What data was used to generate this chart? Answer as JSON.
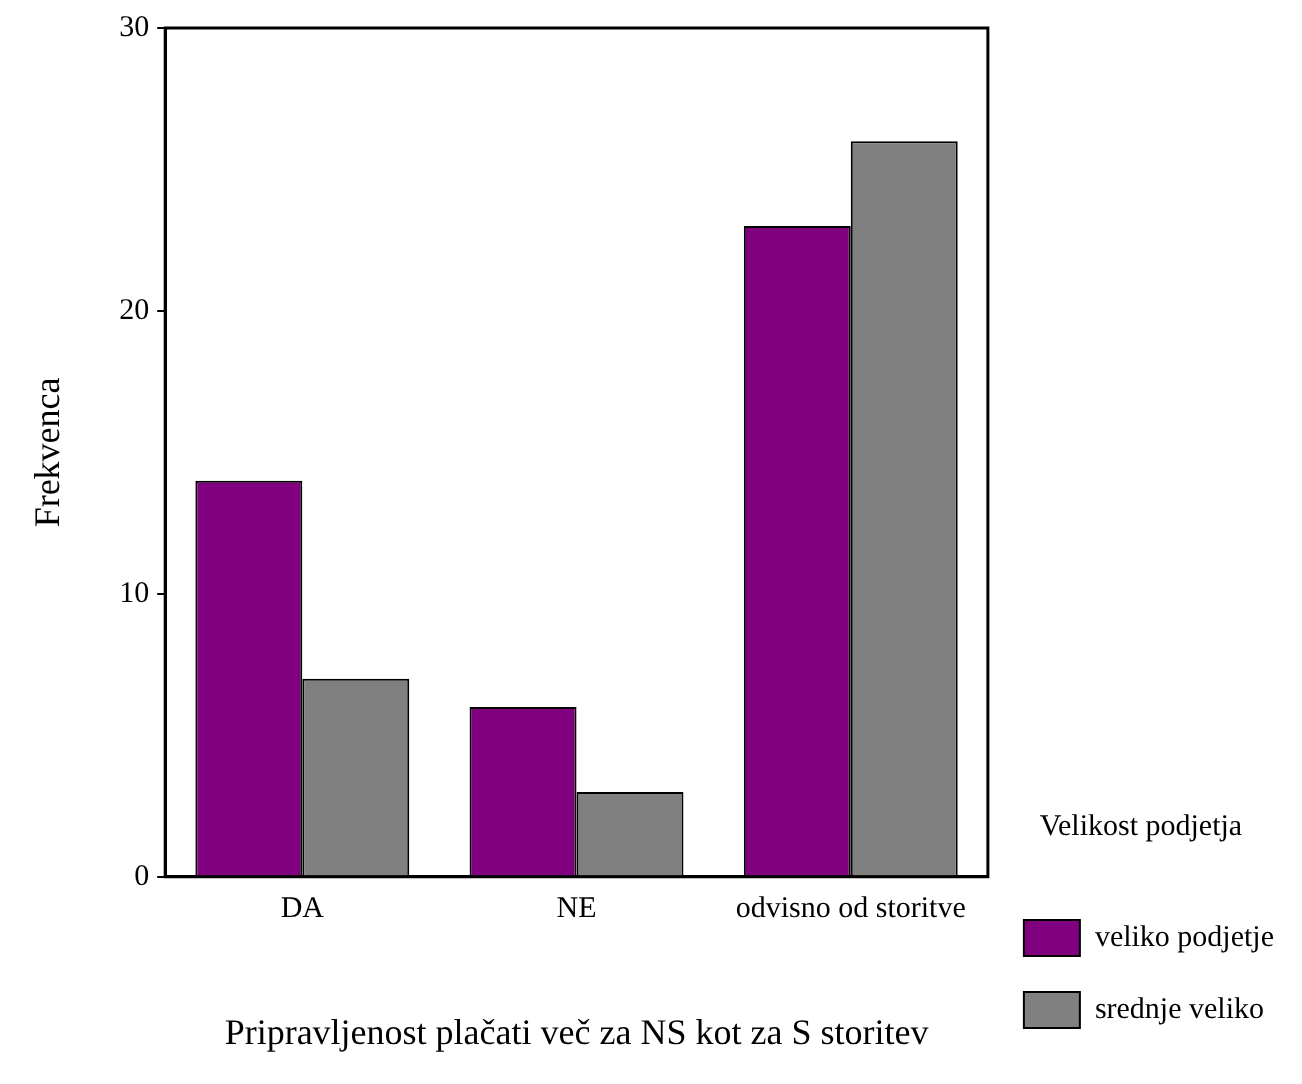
{
  "chart_data": {
    "type": "bar",
    "xlabel": "Pripravljenost plačati več za NS kot za S storitev",
    "ylabel": "Frekvenca",
    "legend_title": "Velikost podjetja",
    "categories": [
      "DA",
      "NE",
      "odvisno od storitve"
    ],
    "series": [
      {
        "name": "veliko podjetje",
        "color": "#800080",
        "values": [
          14,
          6,
          23
        ]
      },
      {
        "name": "srednje veliko",
        "color": "#808080",
        "values": [
          7,
          3,
          26
        ]
      }
    ],
    "ylim": [
      0,
      30
    ],
    "yticks": [
      0,
      10,
      20,
      30
    ],
    "grid": false,
    "legend": "right"
  }
}
